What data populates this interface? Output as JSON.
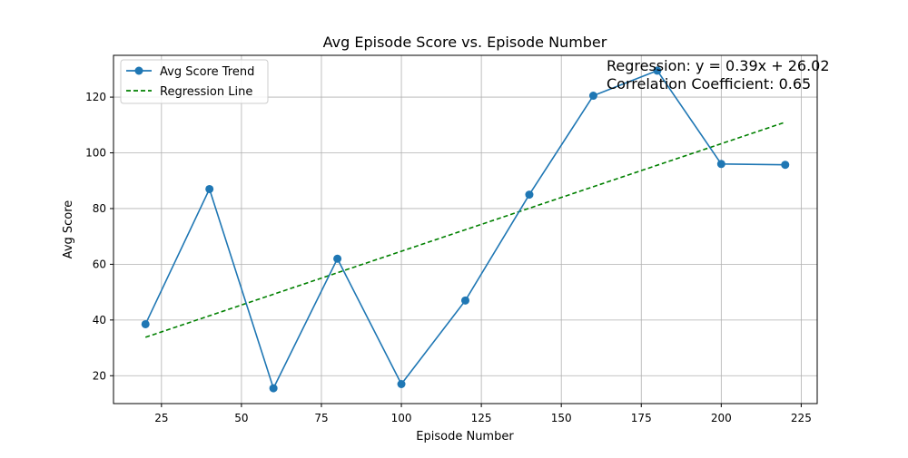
{
  "chart_data": {
    "type": "line",
    "title": "Avg Episode Score vs. Episode Number",
    "xlabel": "Episode Number",
    "ylabel": "Avg Score",
    "xlim": [
      10,
      230
    ],
    "ylim": [
      10,
      135
    ],
    "xticks": [
      25,
      50,
      75,
      100,
      125,
      150,
      175,
      200,
      225
    ],
    "yticks": [
      20,
      40,
      60,
      80,
      100,
      120
    ],
    "grid": true,
    "legend_position": "top-left",
    "series": [
      {
        "name": "Avg Score Trend",
        "color": "#1f77b4",
        "style": "solid-with-markers",
        "x": [
          20,
          40,
          60,
          80,
          100,
          120,
          140,
          160,
          180,
          200,
          220
        ],
        "y": [
          38.5,
          87.0,
          15.5,
          62.0,
          17.0,
          47.0,
          85.0,
          120.5,
          129.5,
          96.0,
          95.7
        ]
      },
      {
        "name": "Regression Line",
        "color": "#008000",
        "style": "dashed",
        "x": [
          20,
          220
        ],
        "y": [
          33.8,
          111.0
        ]
      }
    ],
    "annotations": [
      "Regression: y = 0.39x + 26.02",
      "Correlation Coefficient: 0.65"
    ]
  }
}
